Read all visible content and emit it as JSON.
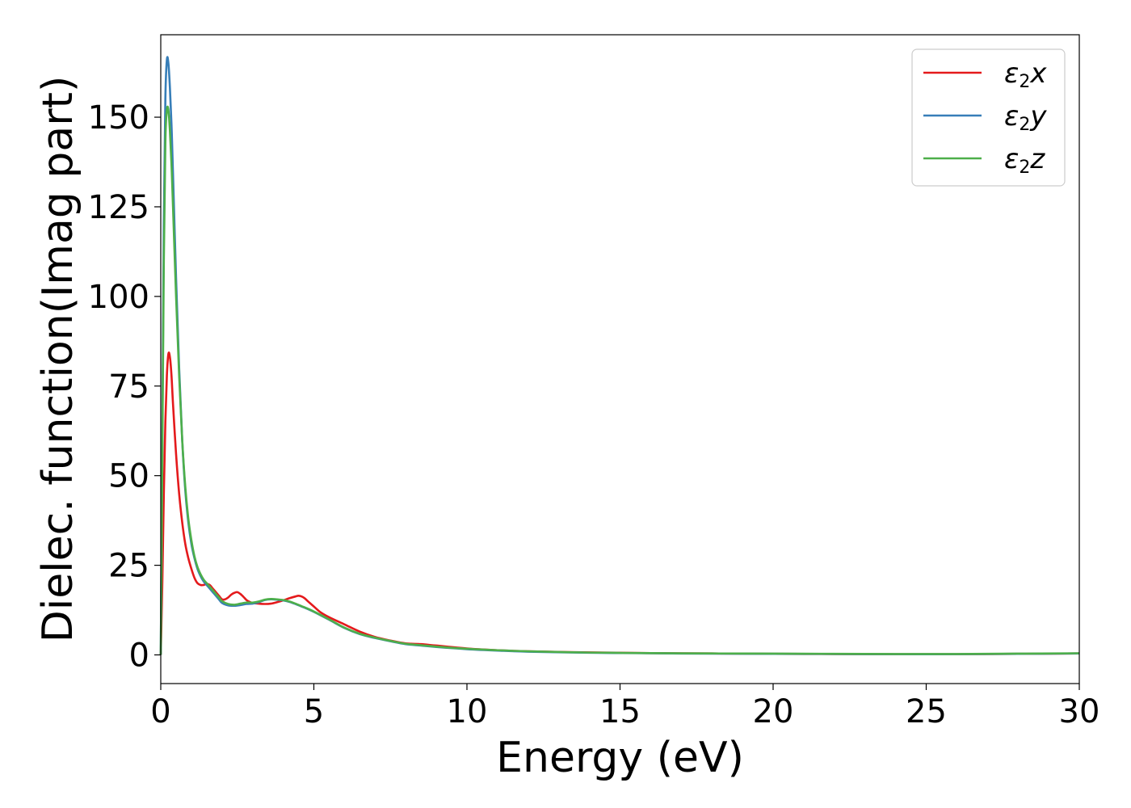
{
  "chart_data": {
    "type": "line",
    "title": "",
    "xlabel": "Energy (eV)",
    "ylabel": "Dielec. function(Imag part)",
    "xlim": [
      0,
      30
    ],
    "ylim": [
      -8,
      173
    ],
    "xticks": [
      0,
      5,
      10,
      15,
      20,
      25,
      30
    ],
    "yticks": [
      0,
      25,
      50,
      75,
      100,
      125,
      150
    ],
    "grid": false,
    "legend_position": "top-right",
    "series": [
      {
        "name": "ε2x",
        "legend_main": "ε",
        "legend_sub": "2",
        "legend_suffix": "x",
        "color": "#e41a1c",
        "x": [
          0,
          0.05,
          0.1,
          0.15,
          0.2,
          0.25,
          0.3,
          0.35,
          0.4,
          0.5,
          0.6,
          0.7,
          0.8,
          0.9,
          1.0,
          1.1,
          1.2,
          1.3,
          1.4,
          1.5,
          1.6,
          1.7,
          1.8,
          1.9,
          2.0,
          2.1,
          2.2,
          2.3,
          2.4,
          2.5,
          2.6,
          2.7,
          2.8,
          2.9,
          3.0,
          3.2,
          3.4,
          3.6,
          3.8,
          4.0,
          4.2,
          4.4,
          4.5,
          4.6,
          4.7,
          4.8,
          5.0,
          5.2,
          5.5,
          6.0,
          6.5,
          7.0,
          7.5,
          8.0,
          8.5,
          9.0,
          10.0,
          11.0,
          12.0,
          14.0,
          16.0,
          18.0,
          20.0,
          22.0,
          24.0,
          26.0,
          28.0,
          30.0
        ],
        "values": [
          0,
          20,
          45,
          65,
          78,
          84,
          83,
          78,
          70,
          56,
          45,
          37,
          31,
          27,
          24,
          21.5,
          20,
          19.5,
          19.5,
          19.8,
          19.5,
          18.5,
          17.5,
          16.5,
          15.5,
          15.5,
          16,
          16.8,
          17.3,
          17.5,
          17,
          16.2,
          15.3,
          14.8,
          14.5,
          14.3,
          14.2,
          14.3,
          14.7,
          15.2,
          15.8,
          16.3,
          16.5,
          16.3,
          15.8,
          15,
          13.5,
          12,
          10.5,
          8.5,
          6.5,
          5,
          4,
          3.2,
          3,
          2.6,
          1.8,
          1.3,
          1.0,
          0.7,
          0.5,
          0.4,
          0.3,
          0.25,
          0.2,
          0.2,
          0.3,
          0.4
        ]
      },
      {
        "name": "ε2y",
        "legend_main": "ε",
        "legend_sub": "2",
        "legend_suffix": "y",
        "color": "#377eb8",
        "x": [
          0,
          0.05,
          0.1,
          0.15,
          0.2,
          0.25,
          0.3,
          0.35,
          0.4,
          0.5,
          0.6,
          0.7,
          0.8,
          0.9,
          1.0,
          1.1,
          1.2,
          1.3,
          1.4,
          1.5,
          1.6,
          1.7,
          1.8,
          1.9,
          2.0,
          2.2,
          2.4,
          2.6,
          2.8,
          3.0,
          3.2,
          3.4,
          3.6,
          3.8,
          4.0,
          4.2,
          4.4,
          4.6,
          4.8,
          5.0,
          5.5,
          6.0,
          6.5,
          7.0,
          7.5,
          8.0,
          8.5,
          9.0,
          10.0,
          11.0,
          12.0,
          14.0,
          16.0,
          18.0,
          20.0,
          22.0,
          24.0,
          26.0,
          28.0,
          30.0
        ],
        "values": [
          0,
          60,
          120,
          155,
          166,
          165,
          158,
          148,
          134,
          105,
          80,
          60,
          46,
          37,
          31,
          27,
          24,
          22,
          20.5,
          19.5,
          18.5,
          17.5,
          16.5,
          15.5,
          14.5,
          13.8,
          13.7,
          13.9,
          14.2,
          14.3,
          14.7,
          15.3,
          15.5,
          15.4,
          15.2,
          14.8,
          14.2,
          13.5,
          12.8,
          12,
          9.8,
          7.5,
          5.8,
          4.7,
          3.8,
          3.0,
          2.6,
          2.2,
          1.6,
          1.2,
          0.9,
          0.6,
          0.45,
          0.35,
          0.3,
          0.25,
          0.2,
          0.2,
          0.3,
          0.4
        ]
      },
      {
        "name": "ε2z",
        "legend_main": "ε",
        "legend_sub": "2",
        "legend_suffix": "z",
        "color": "#4daf4a",
        "x": [
          0,
          0.05,
          0.1,
          0.15,
          0.2,
          0.25,
          0.3,
          0.35,
          0.4,
          0.5,
          0.6,
          0.7,
          0.8,
          0.9,
          1.0,
          1.1,
          1.2,
          1.3,
          1.4,
          1.5,
          1.6,
          1.7,
          1.8,
          1.9,
          2.0,
          2.2,
          2.4,
          2.6,
          2.8,
          3.0,
          3.2,
          3.4,
          3.6,
          3.8,
          4.0,
          4.2,
          4.4,
          4.6,
          4.8,
          5.0,
          5.5,
          6.0,
          6.5,
          7.0,
          7.5,
          8.0,
          8.5,
          9.0,
          10.0,
          11.0,
          12.0,
          14.0,
          16.0,
          18.0,
          20.0,
          22.0,
          24.0,
          26.0,
          28.0,
          30.0
        ],
        "values": [
          0,
          55,
          110,
          143,
          152,
          152,
          146,
          137,
          125,
          100,
          78,
          60,
          47,
          38,
          32,
          27.5,
          24.5,
          22.5,
          21,
          20,
          19,
          18,
          17,
          16,
          15,
          14.2,
          14,
          14.3,
          14.6,
          14.6,
          14.9,
          15.4,
          15.6,
          15.5,
          15.3,
          14.9,
          14.3,
          13.6,
          12.9,
          12.1,
          9.9,
          7.6,
          5.9,
          4.8,
          3.9,
          3.1,
          2.7,
          2.3,
          1.7,
          1.3,
          1.0,
          0.65,
          0.5,
          0.4,
          0.35,
          0.3,
          0.25,
          0.25,
          0.35,
          0.45
        ]
      }
    ]
  }
}
